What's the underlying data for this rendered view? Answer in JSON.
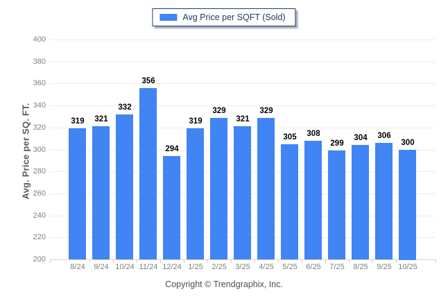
{
  "chart_data": {
    "type": "bar",
    "title": "",
    "legend": [
      "Avg Price per SQFT (Sold)"
    ],
    "legend_position": "top-center",
    "categories": [
      "8/24",
      "9/24",
      "10/24",
      "11/24",
      "12/24",
      "1/25",
      "2/25",
      "3/25",
      "4/25",
      "5/25",
      "6/25",
      "7/25",
      "8/25",
      "9/25",
      "10/25"
    ],
    "values": [
      319,
      321,
      332,
      356,
      294,
      319,
      329,
      321,
      329,
      305,
      308,
      299,
      304,
      306,
      300
    ],
    "xlabel": "",
    "ylabel": "Avg. Price per SQ. FT.",
    "ylim": [
      200,
      400
    ],
    "ytick_step": 20,
    "grid": "horizontal",
    "bar_color": "#4184F3"
  },
  "footer": {
    "copyright": "Copyright © Trendgraphix, Inc."
  },
  "colors": {
    "bar": "#4184F3",
    "gridline": "#ececec",
    "axis_line": "#d4d4d4",
    "tick_mark": "#cccccc",
    "tick_label": "#808080",
    "value_label": "#000000",
    "legend_border": "#1e3c6e",
    "legend_text": "#1f3864",
    "axis_title": "#595959",
    "copyright_text": "#4d4d4d"
  }
}
